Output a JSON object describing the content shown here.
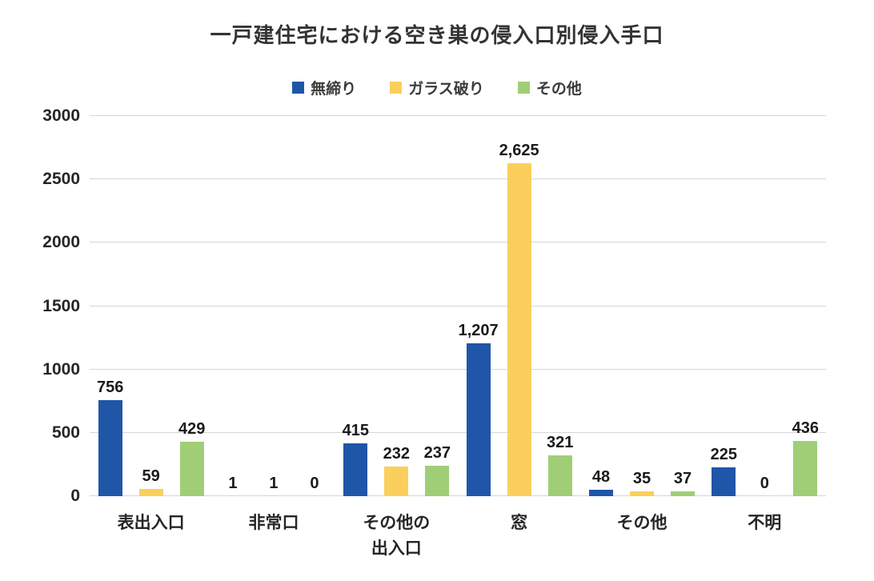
{
  "chart_data": {
    "type": "bar",
    "title": "一戸建住宅における空き巣の侵入口別侵入手口",
    "categories": [
      "表出入口",
      "非常口",
      "その他の\n出入口",
      "窓",
      "その他",
      "不明"
    ],
    "series": [
      {
        "name": "無締り",
        "color": "#1F56A8",
        "values": [
          756,
          1,
          415,
          1207,
          48,
          225
        ],
        "labels": [
          "756",
          "1",
          "415",
          "1,207",
          "48",
          "225"
        ]
      },
      {
        "name": "ガラス破り",
        "color": "#FBCF5B",
        "values": [
          59,
          1,
          232,
          2625,
          35,
          0
        ],
        "labels": [
          "59",
          "1",
          "232",
          "2,625",
          "35",
          "0"
        ]
      },
      {
        "name": "その他",
        "color": "#A0CE77",
        "values": [
          429,
          0,
          237,
          321,
          37,
          436
        ],
        "labels": [
          "429",
          "0",
          "237",
          "321",
          "37",
          "436"
        ]
      }
    ],
    "xlabel": "",
    "ylabel": "",
    "ylim": [
      0,
      3000
    ],
    "yticks": [
      0,
      500,
      1000,
      1500,
      2000,
      2500,
      3000
    ],
    "grid": true,
    "legend_position": "top",
    "gridline_color": "#d6d6d6",
    "title_color": "#333333",
    "axis_text_color": "#262626"
  }
}
